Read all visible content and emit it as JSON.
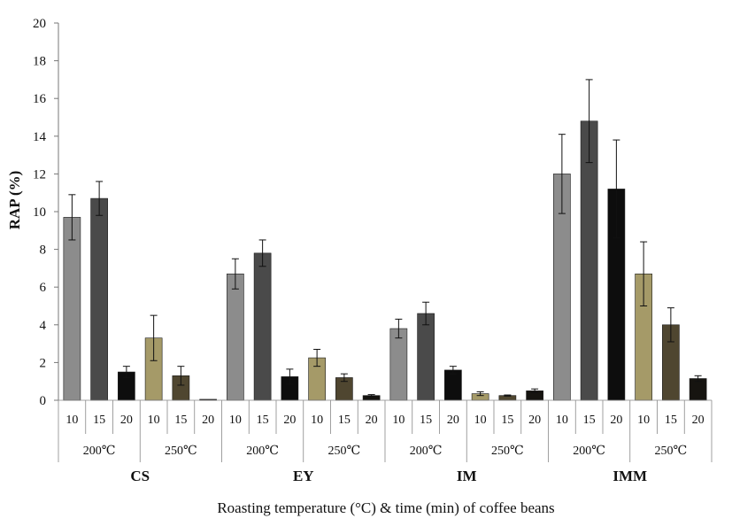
{
  "chart_data": {
    "type": "bar",
    "ylabel": "RAP (%)",
    "xlabel": "Roasting temperature (°C) & time (min) of coffee beans",
    "ylim": [
      0,
      20
    ],
    "yticks": [
      0,
      2,
      4,
      6,
      8,
      10,
      12,
      14,
      16,
      18,
      20
    ],
    "grid": false,
    "samples": [
      "CS",
      "EY",
      "IM",
      "IMM"
    ],
    "temperatures": [
      "200℃",
      "250℃"
    ],
    "times": [
      "10",
      "15",
      "20"
    ],
    "colors": {
      "200℃": [
        "#8c8c8c",
        "#4a4a4a",
        "#0d0d0d"
      ],
      "250℃": [
        "#a59a68",
        "#4f4630",
        "#161410"
      ]
    },
    "series": [
      {
        "sample": "CS",
        "temperature": "200℃",
        "values": [
          9.7,
          10.7,
          1.5
        ],
        "errors": [
          1.2,
          0.9,
          0.3
        ]
      },
      {
        "sample": "CS",
        "temperature": "250℃",
        "values": [
          3.3,
          1.3,
          0.05
        ],
        "errors": [
          1.2,
          0.5,
          0.0
        ]
      },
      {
        "sample": "EY",
        "temperature": "200℃",
        "values": [
          6.7,
          7.8,
          1.25
        ],
        "errors": [
          0.8,
          0.7,
          0.4
        ]
      },
      {
        "sample": "EY",
        "temperature": "250℃",
        "values": [
          2.25,
          1.2,
          0.25
        ],
        "errors": [
          0.45,
          0.2,
          0.05
        ]
      },
      {
        "sample": "IM",
        "temperature": "200℃",
        "values": [
          3.8,
          4.6,
          1.6
        ],
        "errors": [
          0.5,
          0.6,
          0.2
        ]
      },
      {
        "sample": "IM",
        "temperature": "250℃",
        "values": [
          0.35,
          0.25,
          0.5
        ],
        "errors": [
          0.1,
          0.03,
          0.1
        ]
      },
      {
        "sample": "IMM",
        "temperature": "200℃",
        "values": [
          12.0,
          14.8,
          11.2
        ],
        "errors": [
          2.1,
          2.2,
          2.6
        ]
      },
      {
        "sample": "IMM",
        "temperature": "250℃",
        "values": [
          6.7,
          4.0,
          1.15
        ],
        "errors": [
          1.7,
          0.9,
          0.15
        ]
      }
    ]
  }
}
